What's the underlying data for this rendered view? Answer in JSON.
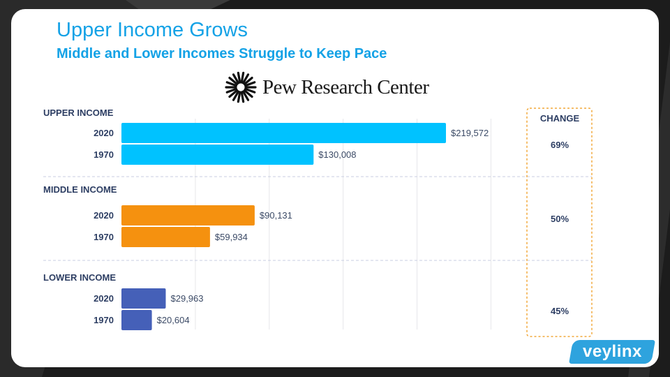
{
  "title": "Upper Income Grows",
  "subtitle": "Middle and Lower Incomes Struggle to Keep Pace",
  "logo": {
    "text": "Pew Research Center",
    "icon": "pew-sunburst-icon"
  },
  "brand": {
    "text": "veylinx"
  },
  "colors": {
    "background": "#1c1c1c",
    "card": "#ffffff",
    "title": "#14a2e6",
    "upper": "#00c2ff",
    "middle": "#f5910f",
    "lower": "#4560b8",
    "change_border": "#f2a83a",
    "brand": "#2ea3de"
  },
  "chart_data": {
    "type": "bar",
    "orientation": "horizontal",
    "title": "Upper Income Grows",
    "subtitle": "Middle and Lower Incomes Struggle to Keep Pace",
    "change_header": "CHANGE",
    "grid": true,
    "xlim": [
      0,
      280000
    ],
    "groups": [
      {
        "name": "UPPER INCOME",
        "color": "#00c2ff",
        "change": "69%",
        "bars": [
          {
            "year": "2020",
            "value": 219572,
            "label": "$219,572"
          },
          {
            "year": "1970",
            "value": 130008,
            "label": "$130,008"
          }
        ]
      },
      {
        "name": "MIDDLE INCOME",
        "color": "#f5910f",
        "change": "50%",
        "bars": [
          {
            "year": "2020",
            "value": 90131,
            "label": "$90,131"
          },
          {
            "year": "1970",
            "value": 59934,
            "label": "$59,934"
          }
        ]
      },
      {
        "name": "LOWER INCOME",
        "color": "#4560b8",
        "change": "45%",
        "bars": [
          {
            "year": "2020",
            "value": 29963,
            "label": "$29,963"
          },
          {
            "year": "1970",
            "value": 20604,
            "label": "$20,604"
          }
        ]
      }
    ]
  }
}
